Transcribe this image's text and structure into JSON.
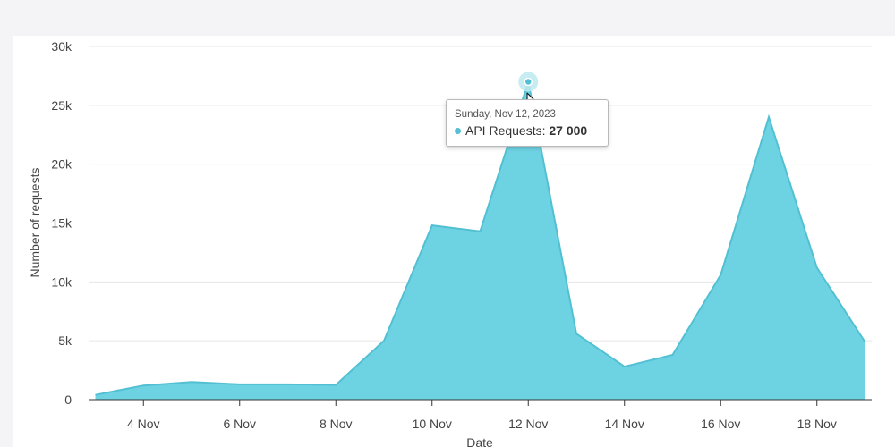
{
  "colors": {
    "area_fill": "#6dd3e2",
    "area_stroke": "#52c0d2",
    "grid": "#e6e6e6",
    "axis_text": "#444444",
    "halo": "#bde9ef"
  },
  "chart_data": {
    "type": "area",
    "title": "",
    "xlabel": "Date",
    "ylabel": "Number of requests",
    "ylim": [
      0,
      30000
    ],
    "yticks": [
      0,
      5000,
      10000,
      15000,
      20000,
      25000,
      30000
    ],
    "ytick_labels": [
      "0",
      "5k",
      "10k",
      "15k",
      "20k",
      "25k",
      "30k"
    ],
    "xtick_labels": [
      "4 Nov",
      "6 Nov",
      "8 Nov",
      "10 Nov",
      "12 Nov",
      "14 Nov",
      "16 Nov",
      "18 Nov"
    ],
    "xtick_days": [
      4,
      6,
      8,
      10,
      12,
      14,
      16,
      18
    ],
    "x_range_days": [
      3,
      19
    ],
    "series": [
      {
        "name": "API Requests",
        "x_days": [
          3,
          4,
          5,
          6,
          7,
          8,
          9,
          10,
          11,
          12,
          13,
          14,
          15,
          16,
          17,
          18,
          19
        ],
        "values": [
          400,
          1200,
          1500,
          1300,
          1300,
          1250,
          5000,
          14800,
          14300,
          27000,
          5600,
          2800,
          3800,
          10600,
          24000,
          11200,
          4900
        ]
      }
    ],
    "tooltip": {
      "date": "Sunday, Nov 12, 2023",
      "series_label": "API Requests",
      "value": "27 000",
      "x_day": 12,
      "y_value": 27000
    }
  }
}
